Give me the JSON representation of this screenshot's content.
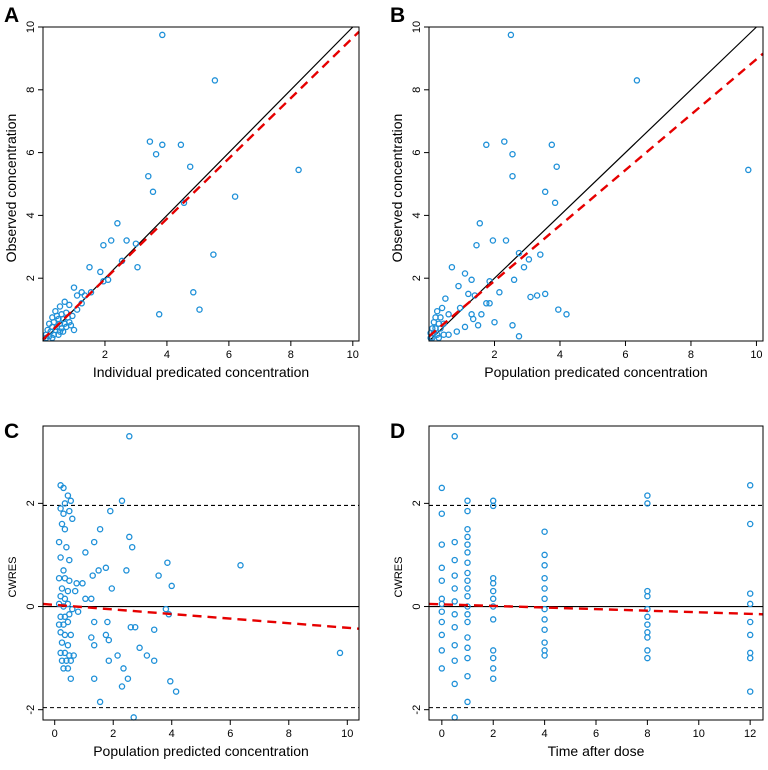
{
  "colors": {
    "points": "#1e90d8",
    "trend": "#e60000",
    "reference": "#000000"
  },
  "chart_data": [
    {
      "panel": "A",
      "type": "scatter",
      "xlabel": "Individual predicated concentration",
      "ylabel": "Observed concentration",
      "xlim": [
        0,
        10.2
      ],
      "ylim": [
        0,
        10
      ],
      "xticks": [
        2,
        4,
        6,
        8,
        10
      ],
      "yticks": [
        2,
        4,
        6,
        8,
        10
      ],
      "reference_line": {
        "type": "identity",
        "label": ""
      },
      "trend_line": {
        "x": [
          0,
          10.2
        ],
        "y": [
          0.05,
          9.85
        ]
      },
      "points": [
        [
          3.85,
          9.75
        ],
        [
          5.55,
          8.3
        ],
        [
          8.25,
          5.45
        ],
        [
          4.45,
          6.25
        ],
        [
          3.45,
          6.35
        ],
        [
          3.85,
          6.25
        ],
        [
          3.65,
          5.95
        ],
        [
          3.4,
          5.25
        ],
        [
          3.55,
          4.75
        ],
        [
          4.75,
          5.55
        ],
        [
          6.2,
          4.6
        ],
        [
          4.55,
          4.4
        ],
        [
          2.4,
          3.75
        ],
        [
          2.2,
          3.2
        ],
        [
          2.7,
          3.2
        ],
        [
          3.0,
          3.1
        ],
        [
          1.95,
          3.05
        ],
        [
          2.55,
          2.55
        ],
        [
          3.05,
          2.35
        ],
        [
          1.5,
          2.35
        ],
        [
          1.85,
          2.2
        ],
        [
          1.95,
          1.9
        ],
        [
          2.1,
          1.95
        ],
        [
          1.55,
          1.55
        ],
        [
          1.25,
          1.55
        ],
        [
          1.35,
          1.45
        ],
        [
          1.0,
          1.7
        ],
        [
          1.1,
          1.45
        ],
        [
          4.85,
          1.55
        ],
        [
          5.05,
          1.0
        ],
        [
          5.5,
          2.75
        ],
        [
          3.75,
          0.85
        ],
        [
          0.55,
          1.1
        ],
        [
          0.7,
          1.25
        ],
        [
          0.85,
          1.15
        ],
        [
          1.1,
          1.0
        ],
        [
          0.4,
          0.95
        ],
        [
          0.45,
          0.8
        ],
        [
          0.6,
          0.85
        ],
        [
          0.75,
          0.9
        ],
        [
          0.3,
          0.75
        ],
        [
          0.5,
          0.7
        ],
        [
          0.65,
          0.7
        ],
        [
          0.8,
          0.75
        ],
        [
          0.95,
          0.8
        ],
        [
          0.2,
          0.55
        ],
        [
          0.35,
          0.6
        ],
        [
          0.55,
          0.55
        ],
        [
          0.7,
          0.55
        ],
        [
          0.85,
          0.6
        ],
        [
          0.3,
          0.45
        ],
        [
          0.45,
          0.45
        ],
        [
          0.6,
          0.4
        ],
        [
          0.75,
          0.45
        ],
        [
          0.15,
          0.35
        ],
        [
          0.25,
          0.3
        ],
        [
          0.4,
          0.35
        ],
        [
          0.55,
          0.3
        ],
        [
          0.65,
          0.3
        ],
        [
          0.1,
          0.2
        ],
        [
          0.2,
          0.15
        ],
        [
          0.35,
          0.2
        ],
        [
          0.5,
          0.2
        ],
        [
          0.1,
          0.1
        ],
        [
          0.3,
          0.1
        ],
        [
          1.25,
          1.2
        ],
        [
          0.9,
          0.5
        ],
        [
          1.0,
          0.35
        ]
      ]
    },
    {
      "panel": "B",
      "type": "scatter",
      "xlabel": "Population predicated concentration",
      "ylabel": "Observed concentration",
      "xlim": [
        0,
        10.2
      ],
      "ylim": [
        0,
        10
      ],
      "xticks": [
        2,
        4,
        6,
        8,
        10
      ],
      "yticks": [
        2,
        4,
        6,
        8,
        10
      ],
      "reference_line": {
        "type": "identity",
        "label": ""
      },
      "trend_line": {
        "x": [
          0,
          10.2
        ],
        "y": [
          0.15,
          9.15
        ]
      },
      "points": [
        [
          2.5,
          9.75
        ],
        [
          6.35,
          8.3
        ],
        [
          9.75,
          5.45
        ],
        [
          1.75,
          6.25
        ],
        [
          2.3,
          6.35
        ],
        [
          3.75,
          6.25
        ],
        [
          2.55,
          5.95
        ],
        [
          2.55,
          5.25
        ],
        [
          3.9,
          5.55
        ],
        [
          3.55,
          4.75
        ],
        [
          3.85,
          4.4
        ],
        [
          1.55,
          3.75
        ],
        [
          2.35,
          3.2
        ],
        [
          1.95,
          3.2
        ],
        [
          3.4,
          2.75
        ],
        [
          1.45,
          3.05
        ],
        [
          2.75,
          2.8
        ],
        [
          3.05,
          2.6
        ],
        [
          0.7,
          2.35
        ],
        [
          2.9,
          2.35
        ],
        [
          1.1,
          2.15
        ],
        [
          1.3,
          1.95
        ],
        [
          1.85,
          1.9
        ],
        [
          2.6,
          1.95
        ],
        [
          2.15,
          1.55
        ],
        [
          1.4,
          1.45
        ],
        [
          3.1,
          1.4
        ],
        [
          3.3,
          1.45
        ],
        [
          3.55,
          1.5
        ],
        [
          1.75,
          1.2
        ],
        [
          1.85,
          1.2
        ],
        [
          0.9,
          1.75
        ],
        [
          1.2,
          1.5
        ],
        [
          0.5,
          1.35
        ],
        [
          0.95,
          1.05
        ],
        [
          3.95,
          1.0
        ],
        [
          4.2,
          0.85
        ],
        [
          1.3,
          0.85
        ],
        [
          0.6,
          0.85
        ],
        [
          1.35,
          0.7
        ],
        [
          2.0,
          0.6
        ],
        [
          2.55,
          0.5
        ],
        [
          2.75,
          0.15
        ],
        [
          0.4,
          1.05
        ],
        [
          0.25,
          0.95
        ],
        [
          0.2,
          0.75
        ],
        [
          0.35,
          0.75
        ],
        [
          0.15,
          0.6
        ],
        [
          0.3,
          0.55
        ],
        [
          0.45,
          0.55
        ],
        [
          0.1,
          0.4
        ],
        [
          0.2,
          0.4
        ],
        [
          0.35,
          0.4
        ],
        [
          0.05,
          0.25
        ],
        [
          0.15,
          0.25
        ],
        [
          0.25,
          0.2
        ],
        [
          0.45,
          0.2
        ],
        [
          0.1,
          0.1
        ],
        [
          0.3,
          0.1
        ],
        [
          1.1,
          0.45
        ],
        [
          1.5,
          0.5
        ],
        [
          1.6,
          0.85
        ],
        [
          0.85,
          0.3
        ],
        [
          0.6,
          0.2
        ],
        [
          0.05,
          0.1
        ]
      ]
    },
    {
      "panel": "C",
      "type": "scatter",
      "xlabel": "Population predicted concentration",
      "ylabel": "CWRES",
      "xlim": [
        -0.4,
        10.4
      ],
      "ylim": [
        -2.2,
        3.5
      ],
      "xticks": [
        0,
        2,
        4,
        6,
        8,
        10
      ],
      "yticks": [
        -2,
        0,
        2
      ],
      "hlines": [
        {
          "y": 1.96,
          "style": "dashed"
        },
        {
          "y": -1.96,
          "style": "dashed"
        },
        {
          "y": 0,
          "style": "solid"
        }
      ],
      "trend_line": {
        "x": [
          -0.4,
          10.4
        ],
        "y": [
          0.05,
          -0.43
        ]
      },
      "points": [
        [
          2.55,
          3.3
        ],
        [
          0.2,
          2.35
        ],
        [
          0.3,
          2.3
        ],
        [
          0.45,
          2.15
        ],
        [
          0.55,
          2.05
        ],
        [
          0.35,
          2.0
        ],
        [
          2.3,
          2.05
        ],
        [
          0.2,
          1.9
        ],
        [
          1.9,
          1.85
        ],
        [
          0.3,
          1.8
        ],
        [
          0.5,
          1.85
        ],
        [
          0.6,
          1.7
        ],
        [
          0.25,
          1.6
        ],
        [
          0.35,
          1.5
        ],
        [
          1.55,
          1.5
        ],
        [
          2.55,
          1.35
        ],
        [
          1.35,
          1.25
        ],
        [
          0.15,
          1.25
        ],
        [
          0.4,
          1.15
        ],
        [
          1.05,
          1.05
        ],
        [
          2.65,
          1.15
        ],
        [
          0.2,
          0.95
        ],
        [
          0.5,
          0.9
        ],
        [
          3.85,
          0.85
        ],
        [
          6.35,
          0.8
        ],
        [
          2.45,
          0.7
        ],
        [
          1.5,
          0.7
        ],
        [
          1.75,
          0.75
        ],
        [
          0.3,
          0.7
        ],
        [
          0.15,
          0.55
        ],
        [
          0.35,
          0.55
        ],
        [
          0.5,
          0.5
        ],
        [
          0.75,
          0.45
        ],
        [
          0.95,
          0.45
        ],
        [
          1.3,
          0.6
        ],
        [
          3.55,
          0.6
        ],
        [
          0.25,
          0.35
        ],
        [
          0.45,
          0.3
        ],
        [
          0.7,
          0.3
        ],
        [
          1.95,
          0.35
        ],
        [
          4.0,
          0.4
        ],
        [
          0.2,
          0.2
        ],
        [
          0.35,
          0.15
        ],
        [
          1.05,
          0.15
        ],
        [
          1.25,
          0.15
        ],
        [
          0.15,
          0.05
        ],
        [
          0.3,
          0.0
        ],
        [
          0.45,
          0.05
        ],
        [
          0.6,
          -0.05
        ],
        [
          0.8,
          -0.1
        ],
        [
          0.2,
          -0.2
        ],
        [
          0.35,
          -0.2
        ],
        [
          0.5,
          -0.15
        ],
        [
          3.8,
          -0.05
        ],
        [
          3.9,
          -0.15
        ],
        [
          0.15,
          -0.35
        ],
        [
          0.3,
          -0.35
        ],
        [
          0.45,
          -0.3
        ],
        [
          1.35,
          -0.3
        ],
        [
          1.8,
          -0.3
        ],
        [
          2.6,
          -0.4
        ],
        [
          2.75,
          -0.4
        ],
        [
          3.4,
          -0.45
        ],
        [
          0.2,
          -0.5
        ],
        [
          0.35,
          -0.55
        ],
        [
          0.55,
          -0.55
        ],
        [
          1.25,
          -0.6
        ],
        [
          1.75,
          -0.55
        ],
        [
          1.85,
          -0.65
        ],
        [
          0.25,
          -0.7
        ],
        [
          0.45,
          -0.75
        ],
        [
          1.35,
          -0.75
        ],
        [
          2.9,
          -0.8
        ],
        [
          0.2,
          -0.9
        ],
        [
          0.35,
          -0.9
        ],
        [
          0.5,
          -0.95
        ],
        [
          0.65,
          -0.95
        ],
        [
          2.15,
          -0.95
        ],
        [
          3.15,
          -0.95
        ],
        [
          9.75,
          -0.9
        ],
        [
          0.25,
          -1.05
        ],
        [
          0.4,
          -1.05
        ],
        [
          0.55,
          -1.05
        ],
        [
          1.85,
          -1.05
        ],
        [
          3.4,
          -1.05
        ],
        [
          0.3,
          -1.2
        ],
        [
          0.45,
          -1.2
        ],
        [
          2.35,
          -1.2
        ],
        [
          0.55,
          -1.4
        ],
        [
          1.35,
          -1.4
        ],
        [
          2.5,
          -1.4
        ],
        [
          3.95,
          -1.45
        ],
        [
          2.3,
          -1.55
        ],
        [
          4.15,
          -1.65
        ],
        [
          1.55,
          -1.85
        ],
        [
          2.7,
          -2.15
        ]
      ]
    },
    {
      "panel": "D",
      "type": "scatter",
      "xlabel": "Time after dose",
      "ylabel": "CWRES",
      "xlim": [
        -0.5,
        12.5
      ],
      "ylim": [
        -2.2,
        3.5
      ],
      "xticks": [
        0,
        2,
        4,
        6,
        8,
        10,
        12
      ],
      "yticks": [
        -2,
        0,
        2
      ],
      "hlines": [
        {
          "y": 1.96,
          "style": "dashed"
        },
        {
          "y": -1.96,
          "style": "dashed"
        },
        {
          "y": 0,
          "style": "solid"
        }
      ],
      "trend_line": {
        "x": [
          -0.5,
          12.5
        ],
        "y": [
          0.05,
          -0.15
        ]
      },
      "points": [
        [
          0,
          2.3
        ],
        [
          0,
          1.8
        ],
        [
          0,
          1.2
        ],
        [
          0,
          0.75
        ],
        [
          0,
          0.5
        ],
        [
          0,
          0.15
        ],
        [
          0,
          0.05
        ],
        [
          0,
          -0.1
        ],
        [
          0,
          -0.3
        ],
        [
          0,
          -0.55
        ],
        [
          0,
          -0.85
        ],
        [
          0,
          -1.2
        ],
        [
          0.5,
          3.3
        ],
        [
          0.5,
          1.25
        ],
        [
          0.5,
          0.9
        ],
        [
          0.5,
          0.6
        ],
        [
          0.5,
          0.35
        ],
        [
          0.5,
          0.1
        ],
        [
          0.5,
          -0.15
        ],
        [
          0.5,
          -0.4
        ],
        [
          0.5,
          -0.75
        ],
        [
          0.5,
          -1.05
        ],
        [
          0.5,
          -1.5
        ],
        [
          0.5,
          -2.15
        ],
        [
          1,
          2.05
        ],
        [
          1,
          1.85
        ],
        [
          1,
          1.5
        ],
        [
          1,
          1.35
        ],
        [
          1,
          1.2
        ],
        [
          1,
          1.05
        ],
        [
          1,
          0.85
        ],
        [
          1,
          0.65
        ],
        [
          1,
          0.5
        ],
        [
          1,
          0.35
        ],
        [
          1,
          0.2
        ],
        [
          1,
          0.0
        ],
        [
          1,
          -0.15
        ],
        [
          1,
          -0.3
        ],
        [
          1,
          -0.6
        ],
        [
          1,
          -0.8
        ],
        [
          1,
          -1.0
        ],
        [
          1,
          -1.35
        ],
        [
          1,
          -1.85
        ],
        [
          2,
          2.05
        ],
        [
          2,
          1.95
        ],
        [
          2,
          0.55
        ],
        [
          2,
          0.45
        ],
        [
          2,
          0.3
        ],
        [
          2,
          0.15
        ],
        [
          2,
          0.0
        ],
        [
          2,
          -0.25
        ],
        [
          2,
          -0.85
        ],
        [
          2,
          -1.0
        ],
        [
          2,
          -1.2
        ],
        [
          2,
          -1.4
        ],
        [
          4,
          1.45
        ],
        [
          4,
          1.0
        ],
        [
          4,
          0.8
        ],
        [
          4,
          0.55
        ],
        [
          4,
          0.35
        ],
        [
          4,
          0.15
        ],
        [
          4,
          -0.05
        ],
        [
          4,
          -0.25
        ],
        [
          4,
          -0.45
        ],
        [
          4,
          -0.7
        ],
        [
          4,
          -0.85
        ],
        [
          4,
          -0.95
        ],
        [
          8,
          2.15
        ],
        [
          8,
          2.0
        ],
        [
          8,
          0.3
        ],
        [
          8,
          0.2
        ],
        [
          8,
          -0.05
        ],
        [
          8,
          -0.2
        ],
        [
          8,
          -0.35
        ],
        [
          8,
          -0.5
        ],
        [
          8,
          -0.6
        ],
        [
          8,
          -0.85
        ],
        [
          8,
          -1.0
        ],
        [
          12,
          2.35
        ],
        [
          12,
          1.6
        ],
        [
          12,
          0.25
        ],
        [
          12,
          0.05
        ],
        [
          12,
          -0.3
        ],
        [
          12,
          -0.55
        ],
        [
          12,
          -0.9
        ],
        [
          12,
          -1.0
        ],
        [
          12,
          -1.65
        ]
      ]
    }
  ]
}
